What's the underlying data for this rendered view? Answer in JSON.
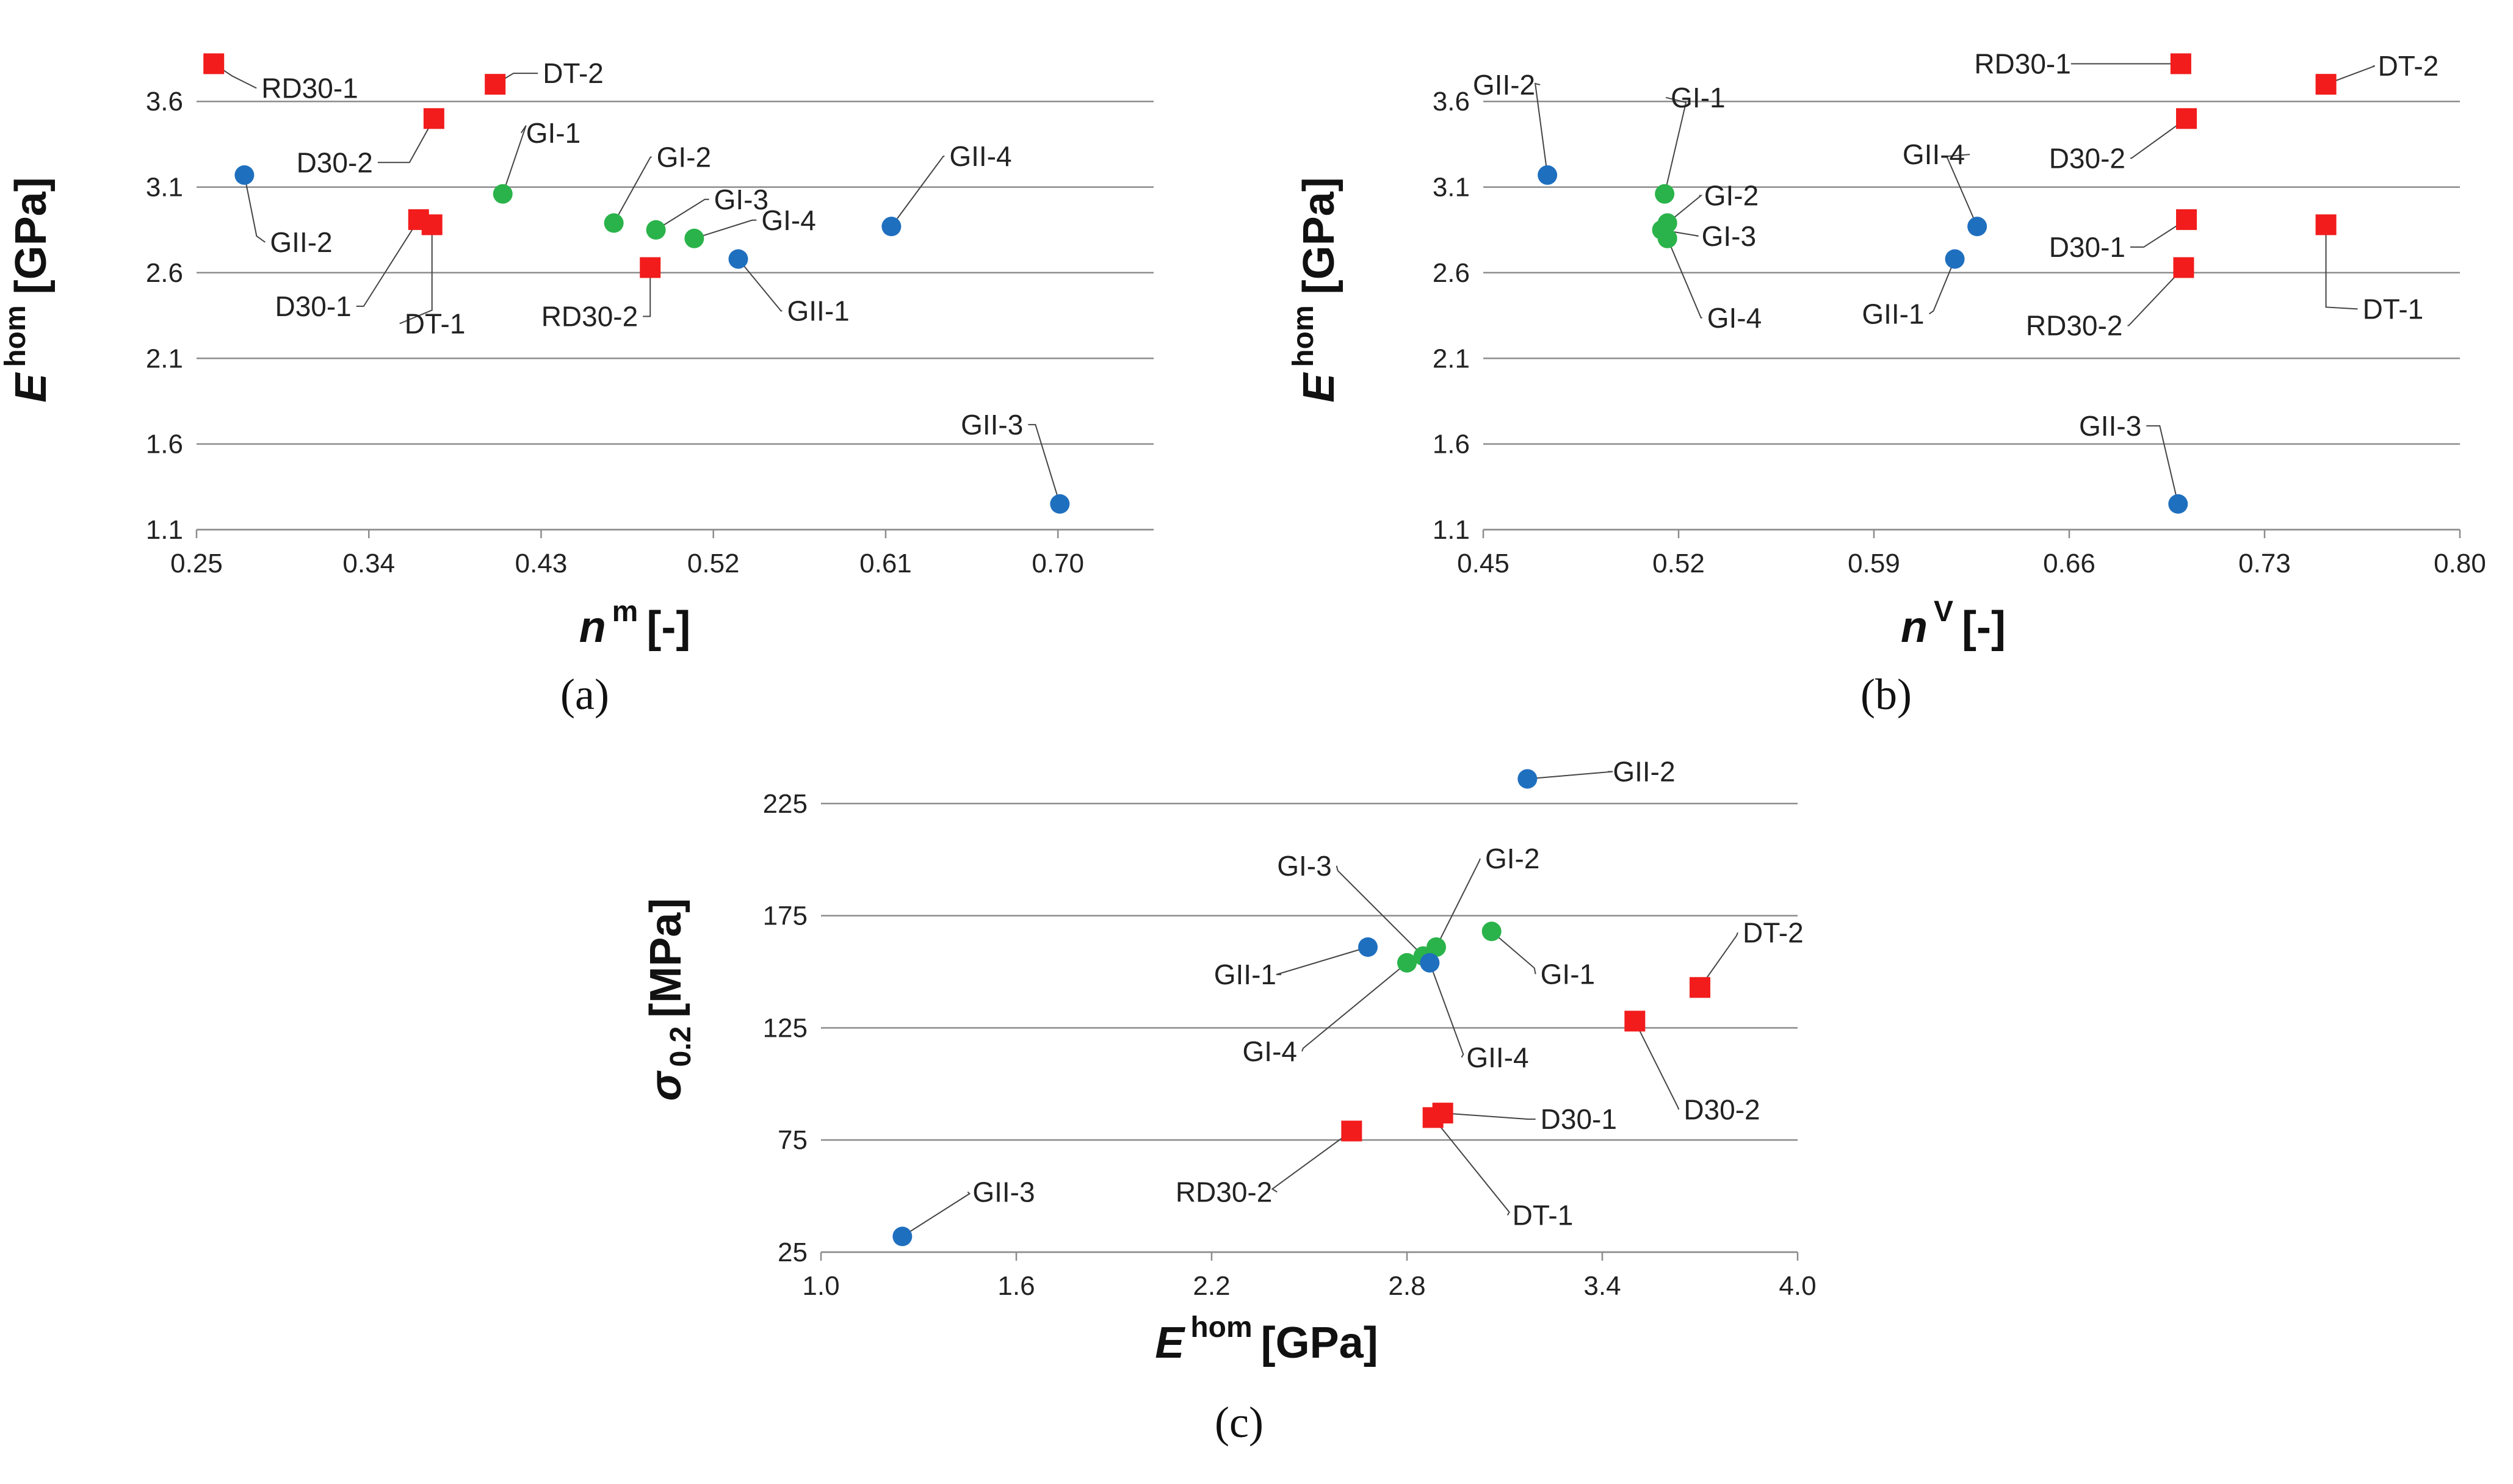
{
  "colors": {
    "group_GI": "#2ab34a",
    "group_GII": "#1f6fbf",
    "group_D": "#f21c1c"
  },
  "chart_data": [
    {
      "id": "a",
      "type": "scatter",
      "caption": "(a)",
      "xlabel": {
        "symbol": "n",
        "sup": "m",
        "unit": "[-]"
      },
      "ylabel": {
        "symbol": "E",
        "sup": "hom",
        "unit": "[GPa]"
      },
      "xlim": [
        0.25,
        0.75
      ],
      "ylim": [
        1.1,
        3.9
      ],
      "xticks": [
        "0.25",
        "0.34",
        "0.43",
        "0.52",
        "0.61",
        "0.70"
      ],
      "yticks": [
        "1.1",
        "1.6",
        "2.1",
        "2.6",
        "3.1",
        "3.6"
      ],
      "grid": "horizontal",
      "points": [
        {
          "label": "RD30-1",
          "group": "D",
          "x": 0.259,
          "y": 3.82
        },
        {
          "label": "DT-2",
          "group": "D",
          "x": 0.406,
          "y": 3.7
        },
        {
          "label": "D30-2",
          "group": "D",
          "x": 0.374,
          "y": 3.5
        },
        {
          "label": "GII-2",
          "group": "GII",
          "x": 0.275,
          "y": 3.17
        },
        {
          "label": "GI-1",
          "group": "GI",
          "x": 0.41,
          "y": 3.06
        },
        {
          "label": "GI-2",
          "group": "GI",
          "x": 0.468,
          "y": 2.89
        },
        {
          "label": "GI-3",
          "group": "GI",
          "x": 0.49,
          "y": 2.85
        },
        {
          "label": "GI-4",
          "group": "GI",
          "x": 0.51,
          "y": 2.8
        },
        {
          "label": "GII-4",
          "group": "GII",
          "x": 0.613,
          "y": 2.87
        },
        {
          "label": "D30-1",
          "group": "D",
          "x": 0.366,
          "y": 2.91
        },
        {
          "label": "DT-1",
          "group": "D",
          "x": 0.373,
          "y": 2.88
        },
        {
          "label": "RD30-2",
          "group": "D",
          "x": 0.487,
          "y": 2.63
        },
        {
          "label": "GII-1",
          "group": "GII",
          "x": 0.533,
          "y": 2.68
        },
        {
          "label": "GII-3",
          "group": "GII",
          "x": 0.701,
          "y": 1.25
        }
      ]
    },
    {
      "id": "b",
      "type": "scatter",
      "caption": "(b)",
      "xlabel": {
        "symbol": "n",
        "sup": "V",
        "unit": "[-]"
      },
      "ylabel": {
        "symbol": "E",
        "sup": "hom",
        "unit": "[GPa]"
      },
      "xlim": [
        0.45,
        0.8
      ],
      "ylim": [
        1.1,
        3.9
      ],
      "xticks": [
        "0.45",
        "0.52",
        "0.59",
        "0.66",
        "0.73",
        "0.80"
      ],
      "yticks": [
        "1.1",
        "1.6",
        "2.1",
        "2.6",
        "3.1",
        "3.6"
      ],
      "grid": "horizontal",
      "points": [
        {
          "label": "GII-2",
          "group": "GII",
          "x": 0.473,
          "y": 3.17
        },
        {
          "label": "GI-1",
          "group": "GI",
          "x": 0.515,
          "y": 3.06
        },
        {
          "label": "GI-2",
          "group": "GI",
          "x": 0.516,
          "y": 2.89
        },
        {
          "label": "GI-3",
          "group": "GI",
          "x": 0.514,
          "y": 2.85
        },
        {
          "label": "GI-4",
          "group": "GI",
          "x": 0.516,
          "y": 2.8
        },
        {
          "label": "RD30-1",
          "group": "D",
          "x": 0.7,
          "y": 3.82
        },
        {
          "label": "DT-2",
          "group": "D",
          "x": 0.752,
          "y": 3.7
        },
        {
          "label": "D30-2",
          "group": "D",
          "x": 0.702,
          "y": 3.5
        },
        {
          "label": "GII-4",
          "group": "GII",
          "x": 0.627,
          "y": 2.87
        },
        {
          "label": "GII-1",
          "group": "GII",
          "x": 0.619,
          "y": 2.68
        },
        {
          "label": "D30-1",
          "group": "D",
          "x": 0.702,
          "y": 2.91
        },
        {
          "label": "RD30-2",
          "group": "D",
          "x": 0.701,
          "y": 2.63
        },
        {
          "label": "DT-1",
          "group": "D",
          "x": 0.752,
          "y": 2.88
        },
        {
          "label": "GII-3",
          "group": "GII",
          "x": 0.699,
          "y": 1.25
        }
      ]
    },
    {
      "id": "c",
      "type": "scatter",
      "caption": "(c)",
      "xlabel": {
        "symbol": "E",
        "sup": "hom",
        "unit": "[GPa]"
      },
      "ylabel": {
        "symbol": "σ",
        "sub": "0.2",
        "unit": "[MPa]"
      },
      "xlim": [
        1.0,
        4.0
      ],
      "ylim": [
        25,
        250
      ],
      "xticks": [
        "1.0",
        "1.6",
        "2.2",
        "2.8",
        "3.4",
        "4.0"
      ],
      "yticks": [
        "25",
        "75",
        "125",
        "175",
        "225"
      ],
      "grid": "horizontal",
      "points": [
        {
          "label": "GII-2",
          "group": "GII",
          "x": 3.17,
          "y": 236
        },
        {
          "label": "GI-3",
          "group": "GI",
          "x": 2.85,
          "y": 157
        },
        {
          "label": "GI-2",
          "group": "GI",
          "x": 2.89,
          "y": 161
        },
        {
          "label": "GII-1",
          "group": "GII",
          "x": 2.68,
          "y": 161
        },
        {
          "label": "GI-1",
          "group": "GI",
          "x": 3.06,
          "y": 168
        },
        {
          "label": "DT-2",
          "group": "D",
          "x": 3.7,
          "y": 143
        },
        {
          "label": "GI-4",
          "group": "GI",
          "x": 2.8,
          "y": 154
        },
        {
          "label": "GII-4",
          "group": "GII",
          "x": 2.87,
          "y": 154
        },
        {
          "label": "D30-2",
          "group": "D",
          "x": 3.5,
          "y": 128
        },
        {
          "label": "D30-1",
          "group": "D",
          "x": 2.91,
          "y": 87
        },
        {
          "label": "DT-1",
          "group": "D",
          "x": 2.88,
          "y": 85
        },
        {
          "label": "RD30-2",
          "group": "D",
          "x": 2.63,
          "y": 79
        },
        {
          "label": "GII-3",
          "group": "GII",
          "x": 1.25,
          "y": 32
        }
      ]
    }
  ]
}
